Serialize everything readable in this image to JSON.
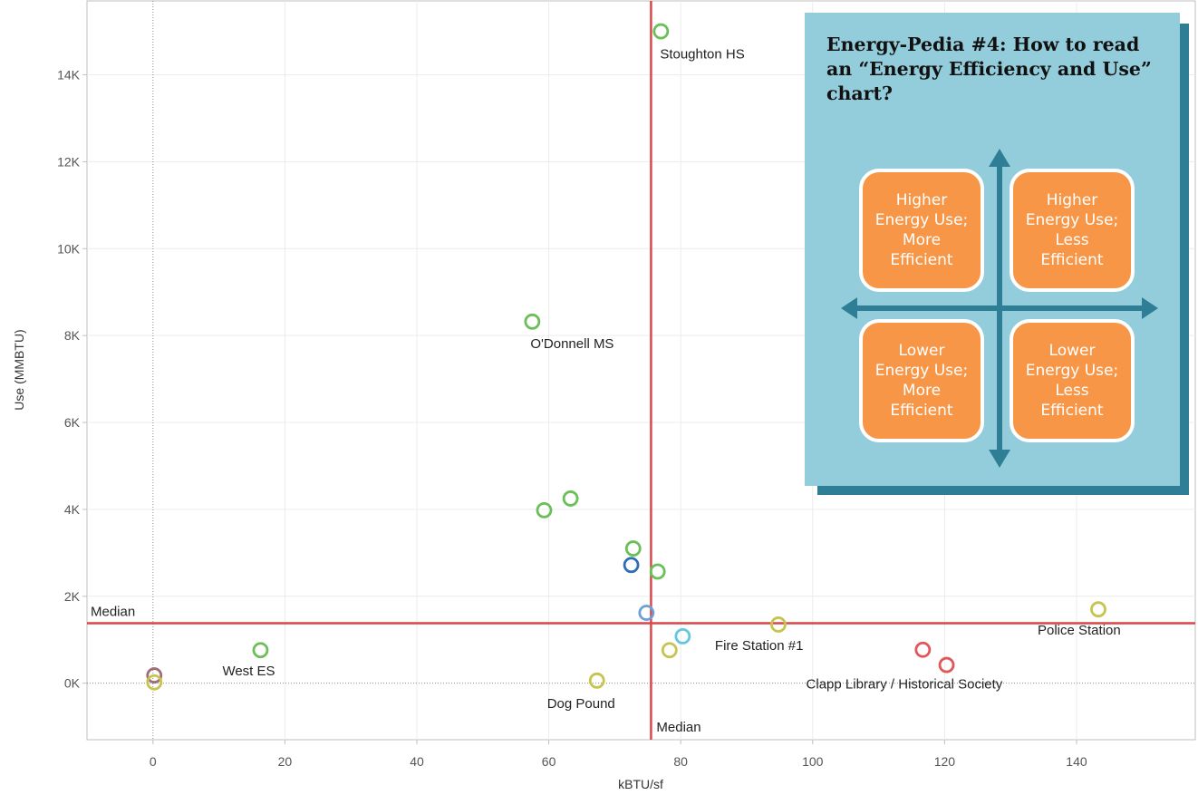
{
  "chart_data": {
    "type": "scatter",
    "title": "",
    "xlabel": "kBTU/sf",
    "ylabel": "Use (MMBTU)",
    "xlim": [
      -10,
      158
    ],
    "ylim": [
      -1300,
      15700
    ],
    "x_ticks": [
      0,
      20,
      40,
      60,
      80,
      100,
      120,
      140
    ],
    "x_tick_labels": [
      "0",
      "20",
      "40",
      "60",
      "80",
      "100",
      "120",
      "140"
    ],
    "y_ticks": [
      0,
      2000,
      4000,
      6000,
      8000,
      10000,
      12000,
      14000
    ],
    "y_tick_labels": [
      "0K",
      "2K",
      "4K",
      "6K",
      "8K",
      "10K",
      "12K",
      "14K"
    ],
    "grid": true,
    "median_lines": {
      "x": 75.5,
      "y": 1380,
      "x_label": "Median",
      "y_label": "Median",
      "color": "#d9474b"
    },
    "points": [
      {
        "x": 77,
        "y": 15000,
        "color": "#6bbf59",
        "label": "Stoughton HS"
      },
      {
        "x": 57.5,
        "y": 8320,
        "color": "#6bbf59",
        "label": "O'Donnell MS"
      },
      {
        "x": 63.3,
        "y": 4250,
        "color": "#6bbf59",
        "label": ""
      },
      {
        "x": 59.3,
        "y": 3980,
        "color": "#6bbf59",
        "label": ""
      },
      {
        "x": 72.8,
        "y": 3100,
        "color": "#6bbf59",
        "label": ""
      },
      {
        "x": 72.5,
        "y": 2720,
        "color": "#2e6eb5",
        "label": ""
      },
      {
        "x": 76.5,
        "y": 2570,
        "color": "#6bbf59",
        "label": ""
      },
      {
        "x": 74.8,
        "y": 1620,
        "color": "#6f9fd8",
        "label": ""
      },
      {
        "x": 80.3,
        "y": 1080,
        "color": "#63c7dd",
        "label": ""
      },
      {
        "x": 78.3,
        "y": 760,
        "color": "#c6c44e",
        "label": ""
      },
      {
        "x": 94.8,
        "y": 1350,
        "color": "#c6c44e",
        "label": "Fire Station #1"
      },
      {
        "x": 143.3,
        "y": 1700,
        "color": "#c6c44e",
        "label": "Police Station"
      },
      {
        "x": 116.7,
        "y": 770,
        "color": "#e15759",
        "label": ""
      },
      {
        "x": 120.3,
        "y": 420,
        "color": "#e15759",
        "label": "Clapp Library / Historical Society"
      },
      {
        "x": 67.3,
        "y": 60,
        "color": "#c6c44e",
        "label": "Dog Pound"
      },
      {
        "x": 16.3,
        "y": 760,
        "color": "#6bbf59",
        "label": "West ES"
      },
      {
        "x": 0.2,
        "y": 180,
        "color": "#9e6d7a",
        "label": ""
      },
      {
        "x": 0.2,
        "y": 20,
        "color": "#c6c44e",
        "label": ""
      }
    ]
  },
  "panel": {
    "title": "Energy-Pedia #4: How to read an “Energy Efficiency and Use” chart?",
    "quadrants": {
      "top_left": "Higher Energy Use; More Efficient",
      "top_right": "Higher Energy Use; Less Efficient",
      "bottom_left": "Lower Energy Use; More Efficient",
      "bottom_right": "Lower Energy Use; Less Efficient"
    },
    "colors": {
      "panel_bg": "#93ccdb",
      "shadow": "#2e7f96",
      "arrow": "#2e7f96",
      "quad_fill": "#f79646"
    }
  }
}
